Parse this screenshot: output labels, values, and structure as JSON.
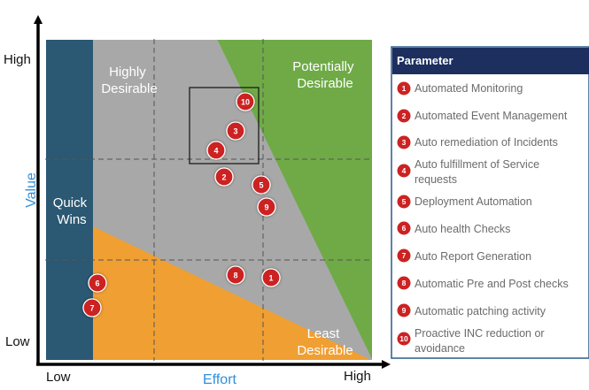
{
  "axes": {
    "y_high": "High",
    "y_low": "Low",
    "y_title": "Value",
    "x_low": "Low",
    "x_high": "High",
    "x_title": "Effort"
  },
  "zones": {
    "quick_wins": [
      "Quick",
      "Wins"
    ],
    "highly_desirable": [
      "Highly",
      "Desirable"
    ],
    "potentially_desirable": [
      "Potentially",
      "Desirable"
    ],
    "least_desirable": [
      "Least",
      "Desirable"
    ]
  },
  "markers": [
    "10",
    "3",
    "4",
    "2",
    "5",
    "9",
    "8",
    "1",
    "6",
    "7"
  ],
  "legend": {
    "header": "Parameter",
    "items": [
      {
        "num": "1",
        "lines": [
          "Automated Monitoring"
        ]
      },
      {
        "num": "2",
        "lines": [
          "Automated Event Management"
        ]
      },
      {
        "num": "3",
        "lines": [
          "Auto remediation of Incidents"
        ]
      },
      {
        "num": "4",
        "lines": [
          "Auto fulfillment of Service",
          "requests"
        ]
      },
      {
        "num": "5",
        "lines": [
          "Deployment Automation"
        ]
      },
      {
        "num": "6",
        "lines": [
          "Auto health Checks"
        ]
      },
      {
        "num": "7",
        "lines": [
          "Auto Report Generation"
        ]
      },
      {
        "num": "8",
        "lines": [
          "Automatic Pre and Post checks"
        ]
      },
      {
        "num": "9",
        "lines": [
          "Automatic patching activity"
        ]
      },
      {
        "num": "10",
        "lines": [
          "Proactive INC reduction or",
          "avoidance"
        ]
      }
    ]
  },
  "colors": {
    "quick_wins": "#2b5872",
    "highly_desirable": "#a8a8a8",
    "potentially_desirable": "#6faa47",
    "least_desirable": "#f09f33",
    "marker": "#cc2222",
    "legend_header": "#1c2f5e",
    "legend_border": "#2b5a8a",
    "axis_title": "#2f8fdc"
  }
}
